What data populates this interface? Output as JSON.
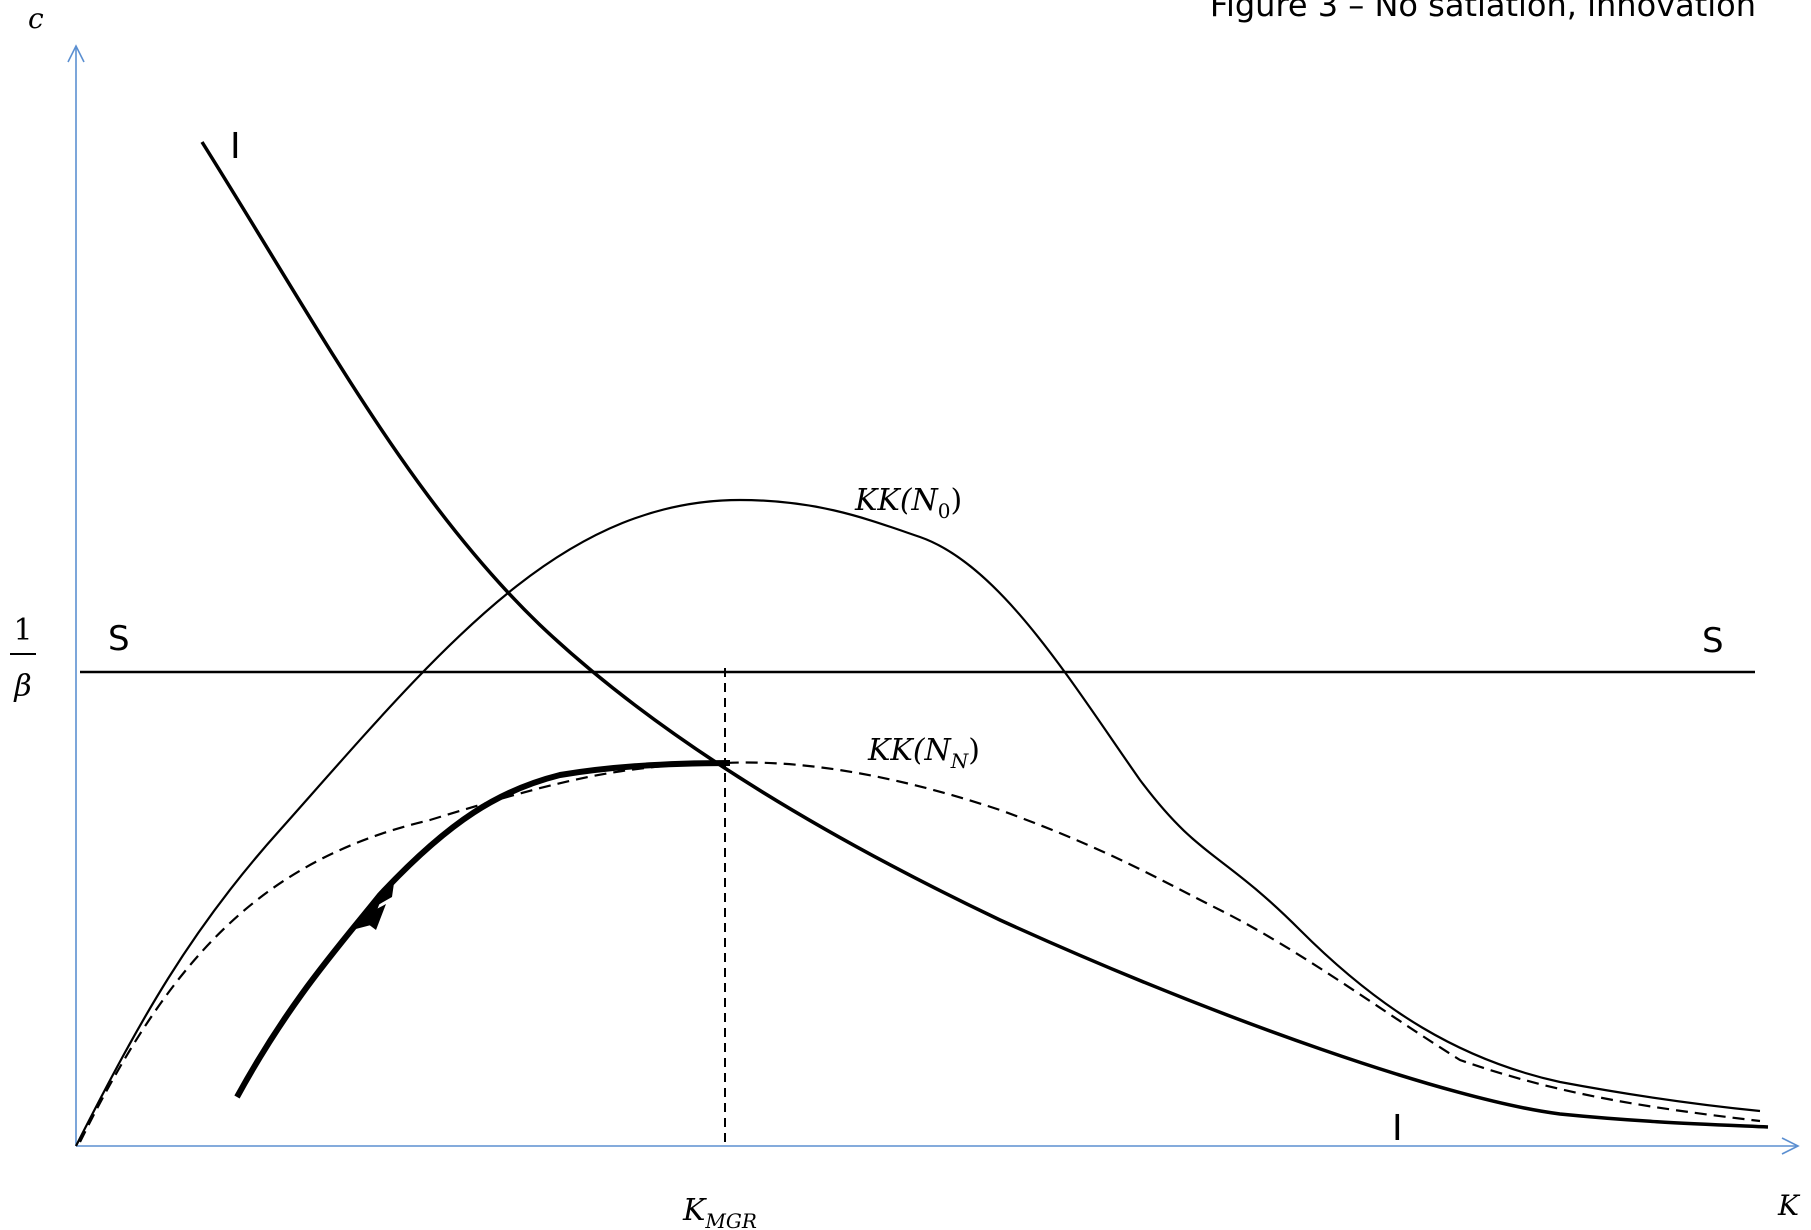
{
  "title": "Figure 3 – No satiation, innovation",
  "axes": {
    "y_label": "c",
    "x_label": "K",
    "y_tick_numerator": "1",
    "y_tick_denominator": "β",
    "x_tick_main": "K",
    "x_tick_sub": "MGR"
  },
  "curves": {
    "ii_left_label": "I",
    "ii_right_label": "I",
    "ss_left_label": "S",
    "ss_right_label": "S",
    "kk0_main": "KK(N",
    "kk0_sub": "0",
    "kk0_close": ")",
    "kkn_main": "KK(N",
    "kkn_sub": "N",
    "kkn_close": ")"
  },
  "colors": {
    "axis": "#5b8fd1",
    "curve": "#000000",
    "background": "#ffffff"
  }
}
